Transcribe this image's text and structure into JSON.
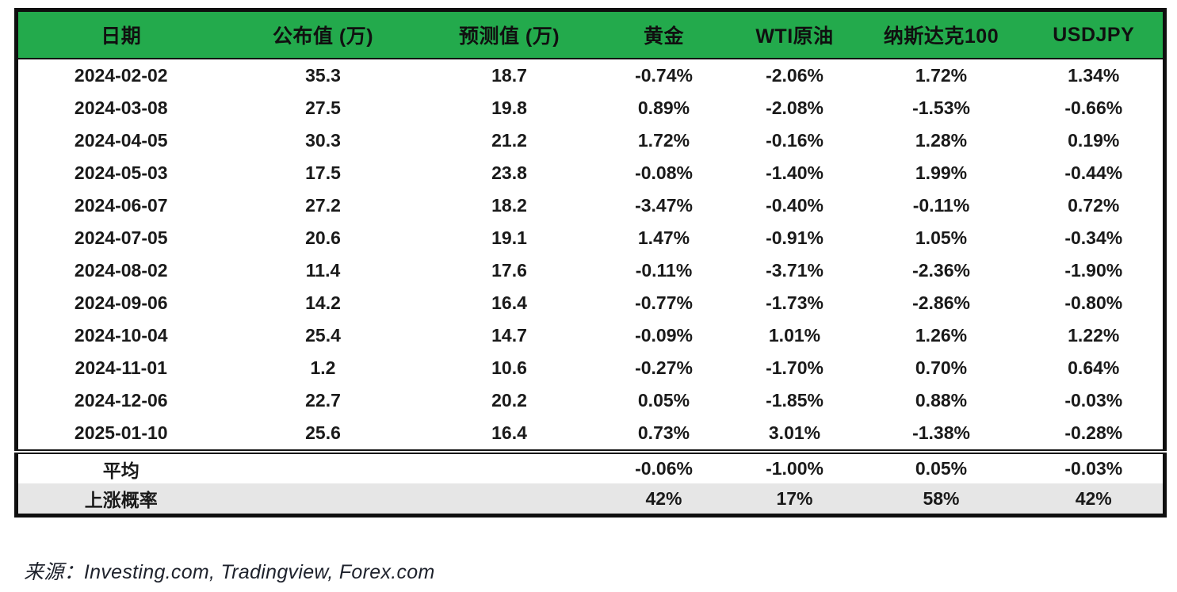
{
  "colors": {
    "header_bg": "#23aa4c",
    "negative_text": "#f92121",
    "positive_text": "#1a1a1a",
    "probability_row_bg": "#e6e6e6"
  },
  "chart_data": {
    "type": "table",
    "columns": [
      "日期",
      "公布值 (万)",
      "预测值 (万)",
      "黄金",
      "WTI原油",
      "纳斯达克100",
      "USDJPY"
    ],
    "rows": [
      [
        "2024-02-02",
        "35.3",
        "18.7",
        "-0.74%",
        "-2.06%",
        "1.72%",
        "1.34%"
      ],
      [
        "2024-03-08",
        "27.5",
        "19.8",
        "0.89%",
        "-2.08%",
        "-1.53%",
        "-0.66%"
      ],
      [
        "2024-04-05",
        "30.3",
        "21.2",
        "1.72%",
        "-0.16%",
        "1.28%",
        "0.19%"
      ],
      [
        "2024-05-03",
        "17.5",
        "23.8",
        "-0.08%",
        "-1.40%",
        "1.99%",
        "-0.44%"
      ],
      [
        "2024-06-07",
        "27.2",
        "18.2",
        "-3.47%",
        "-0.40%",
        "-0.11%",
        "0.72%"
      ],
      [
        "2024-07-05",
        "20.6",
        "19.1",
        "1.47%",
        "-0.91%",
        "1.05%",
        "-0.34%"
      ],
      [
        "2024-08-02",
        "11.4",
        "17.6",
        "-0.11%",
        "-3.71%",
        "-2.36%",
        "-1.90%"
      ],
      [
        "2024-09-06",
        "14.2",
        "16.4",
        "-0.77%",
        "-1.73%",
        "-2.86%",
        "-0.80%"
      ],
      [
        "2024-10-04",
        "25.4",
        "14.7",
        "-0.09%",
        "1.01%",
        "1.26%",
        "1.22%"
      ],
      [
        "2024-11-01",
        "1.2",
        "10.6",
        "-0.27%",
        "-1.70%",
        "0.70%",
        "0.64%"
      ],
      [
        "2024-12-06",
        "22.7",
        "20.2",
        "0.05%",
        "-1.85%",
        "0.88%",
        "-0.03%"
      ],
      [
        "2025-01-10",
        "25.6",
        "16.4",
        "0.73%",
        "3.01%",
        "-1.38%",
        "-0.28%"
      ]
    ],
    "published_red": [
      false,
      false,
      false,
      true,
      false,
      false,
      true,
      true,
      false,
      true,
      false,
      false
    ],
    "average": {
      "label": "平均",
      "gold": "-0.06%",
      "wti": "-1.00%",
      "nasdaq": "0.05%",
      "usdjpy": "-0.03%"
    },
    "up_probability": {
      "label": "上涨概率",
      "gold": "42%",
      "wti": "17%",
      "nasdaq": "58%",
      "usdjpy": "42%"
    }
  },
  "footer": {
    "source_text": "来源：Investing.com, Tradingview, Forex.com"
  }
}
